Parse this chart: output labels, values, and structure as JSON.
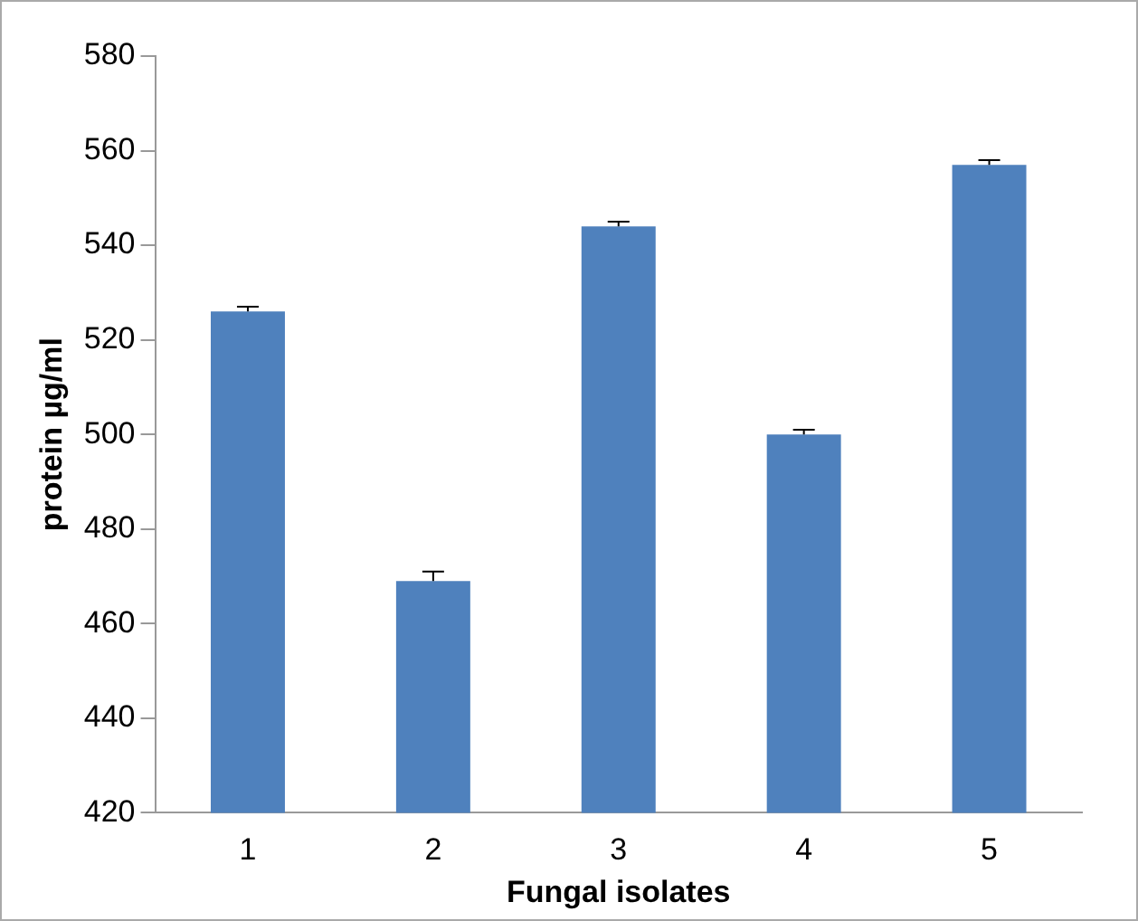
{
  "chart_data": {
    "type": "bar",
    "xlabel": "Fungal isolates",
    "ylabel": "protein µg/ml",
    "categories": [
      "1",
      "2",
      "3",
      "4",
      "5"
    ],
    "values": [
      526,
      469,
      544,
      500,
      557
    ],
    "errors": [
      [
        526,
        527
      ],
      [
        469,
        471
      ],
      [
        544,
        545
      ],
      [
        500,
        501
      ],
      [
        557,
        558
      ]
    ],
    "color": "#4f81bd",
    "ylim": [
      420,
      580
    ],
    "yticks": [
      420,
      440,
      460,
      480,
      500,
      520,
      540,
      560,
      580
    ],
    "grid": false,
    "legend": false
  }
}
